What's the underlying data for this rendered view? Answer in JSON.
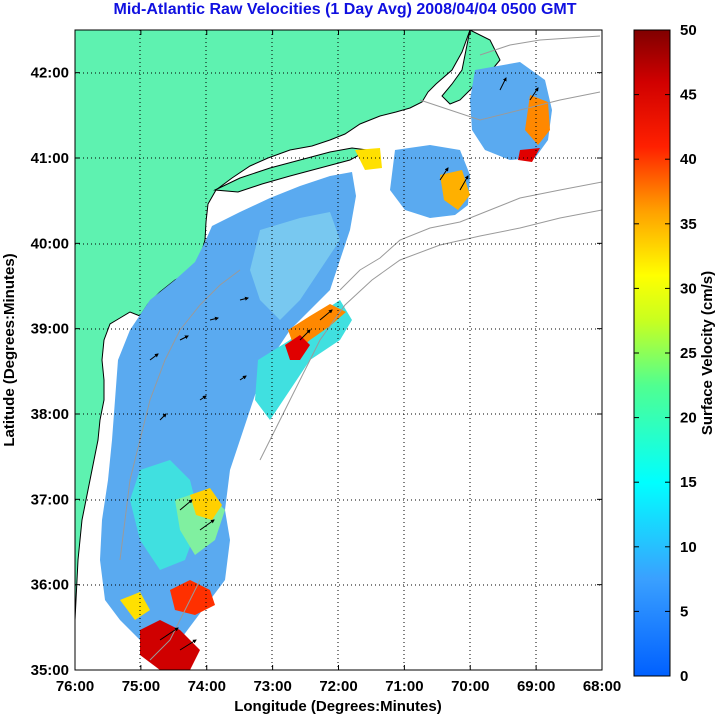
{
  "title": "Mid-Atlantic Raw Velocities (1 Day Avg) 2008/04/04 0500 GMT",
  "map": {
    "xlabel": "Longitude (Degrees:Minutes)",
    "ylabel": "Latitude (Degrees:Minutes)",
    "lon_range": [
      -76,
      -68
    ],
    "lat_range": [
      35,
      42.5
    ],
    "lon_ticks": [
      "76:00",
      "75:00",
      "74:00",
      "73:00",
      "72:00",
      "71:00",
      "70:00",
      "69:00",
      "68:00"
    ],
    "lat_ticks": [
      "35:00",
      "36:00",
      "37:00",
      "38:00",
      "39:00",
      "40:00",
      "41:00",
      "42:00"
    ],
    "land_color": "#5ef2b0",
    "grid": "dotted"
  },
  "colorbar": {
    "label": "Surface Velocity (cm/s)",
    "min": 0,
    "max": 50,
    "ticks": [
      "0",
      "5",
      "10",
      "15",
      "20",
      "25",
      "30",
      "35",
      "40",
      "45",
      "50"
    ],
    "colormap": "jet"
  }
}
